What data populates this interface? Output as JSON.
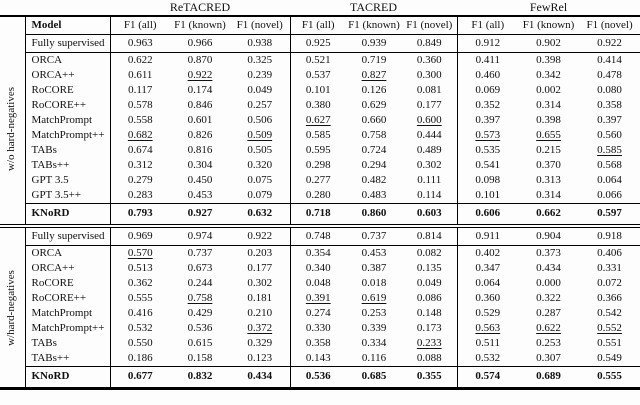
{
  "colors": {
    "background": "#fdfdfd",
    "text": "#111111",
    "rule": "#000000"
  },
  "table": {
    "groups": [
      "ReTACRED",
      "TACRED",
      "FewRel"
    ],
    "model_header": "Model",
    "metric_headers": [
      "F1 (all)",
      "F1 (known)",
      "F1 (novel)"
    ],
    "sections": [
      {
        "label": "w/o hard-negatives",
        "rows": [
          {
            "model": "Fully supervised",
            "style": "fs",
            "values": [
              "0.963",
              "0.966",
              "0.938",
              "0.925",
              "0.939",
              "0.849",
              "0.912",
              "0.902",
              "0.922"
            ]
          },
          {
            "model": "ORCA",
            "values": [
              "0.622",
              "0.870",
              "0.325",
              "0.521",
              "0.719",
              "0.360",
              "0.411",
              "0.398",
              "0.414"
            ]
          },
          {
            "model": "ORCA++",
            "underline": [
              1,
              4
            ],
            "values": [
              "0.611",
              "0.922",
              "0.239",
              "0.537",
              "0.827",
              "0.300",
              "0.460",
              "0.342",
              "0.478"
            ]
          },
          {
            "model": "RoCORE",
            "values": [
              "0.117",
              "0.174",
              "0.049",
              "0.101",
              "0.126",
              "0.081",
              "0.069",
              "0.002",
              "0.080"
            ]
          },
          {
            "model": "RoCORE++",
            "values": [
              "0.578",
              "0.846",
              "0.257",
              "0.380",
              "0.629",
              "0.177",
              "0.352",
              "0.314",
              "0.358"
            ]
          },
          {
            "model": "MatchPrompt",
            "underline": [
              3,
              5
            ],
            "values": [
              "0.558",
              "0.601",
              "0.506",
              "0.627",
              "0.660",
              "0.600",
              "0.397",
              "0.398",
              "0.397"
            ]
          },
          {
            "model": "MatchPrompt++",
            "underline": [
              0,
              2,
              6,
              7
            ],
            "values": [
              "0.682",
              "0.826",
              "0.509",
              "0.585",
              "0.758",
              "0.444",
              "0.573",
              "0.655",
              "0.560"
            ]
          },
          {
            "model": "TABs",
            "underline": [
              8
            ],
            "values": [
              "0.674",
              "0.816",
              "0.505",
              "0.595",
              "0.724",
              "0.489",
              "0.535",
              "0.215",
              "0.585"
            ]
          },
          {
            "model": "TABs++",
            "values": [
              "0.312",
              "0.304",
              "0.320",
              "0.298",
              "0.294",
              "0.302",
              "0.541",
              "0.370",
              "0.568"
            ]
          },
          {
            "model": "GPT 3.5",
            "values": [
              "0.279",
              "0.450",
              "0.075",
              "0.277",
              "0.482",
              "0.111",
              "0.098",
              "0.313",
              "0.064"
            ]
          },
          {
            "model": "GPT 3.5++",
            "values": [
              "0.283",
              "0.453",
              "0.079",
              "0.280",
              "0.483",
              "0.114",
              "0.101",
              "0.314",
              "0.066"
            ]
          },
          {
            "model": "KNoRD",
            "style": "knord",
            "values": [
              "0.793",
              "0.927",
              "0.632",
              "0.718",
              "0.860",
              "0.603",
              "0.606",
              "0.662",
              "0.597"
            ]
          }
        ]
      },
      {
        "label": "w/hard-negatives",
        "rows": [
          {
            "model": "Fully supervised",
            "style": "fs",
            "values": [
              "0.969",
              "0.974",
              "0.922",
              "0.748",
              "0.737",
              "0.814",
              "0.911",
              "0.904",
              "0.918"
            ]
          },
          {
            "model": "ORCA",
            "underline": [
              0
            ],
            "values": [
              "0.570",
              "0.737",
              "0.203",
              "0.354",
              "0.453",
              "0.082",
              "0.402",
              "0.373",
              "0.406"
            ]
          },
          {
            "model": "ORCA++",
            "values": [
              "0.513",
              "0.673",
              "0.177",
              "0.340",
              "0.387",
              "0.135",
              "0.347",
              "0.434",
              "0.331"
            ]
          },
          {
            "model": "RoCORE",
            "values": [
              "0.362",
              "0.244",
              "0.302",
              "0.048",
              "0.018",
              "0.049",
              "0.064",
              "0.000",
              "0.072"
            ]
          },
          {
            "model": "RoCORE++",
            "underline": [
              1,
              3,
              4
            ],
            "values": [
              "0.555",
              "0.758",
              "0.181",
              "0.391",
              "0.619",
              "0.086",
              "0.360",
              "0.322",
              "0.366"
            ]
          },
          {
            "model": "MatchPrompt",
            "values": [
              "0.416",
              "0.429",
              "0.210",
              "0.274",
              "0.253",
              "0.148",
              "0.529",
              "0.287",
              "0.542"
            ]
          },
          {
            "model": "MatchPrompt++",
            "underline": [
              2,
              6,
              7,
              8
            ],
            "values": [
              "0.532",
              "0.536",
              "0.372",
              "0.330",
              "0.339",
              "0.173",
              "0.563",
              "0.622",
              "0.552"
            ]
          },
          {
            "model": "TABs",
            "underline": [
              5
            ],
            "values": [
              "0.550",
              "0.615",
              "0.329",
              "0.358",
              "0.334",
              "0.233",
              "0.511",
              "0.253",
              "0.551"
            ]
          },
          {
            "model": "TABs++",
            "values": [
              "0.186",
              "0.158",
              "0.123",
              "0.143",
              "0.116",
              "0.088",
              "0.532",
              "0.307",
              "0.549"
            ]
          },
          {
            "model": "KNoRD",
            "style": "knord",
            "values": [
              "0.677",
              "0.832",
              "0.434",
              "0.536",
              "0.685",
              "0.355",
              "0.574",
              "0.689",
              "0.555"
            ]
          }
        ]
      }
    ]
  }
}
